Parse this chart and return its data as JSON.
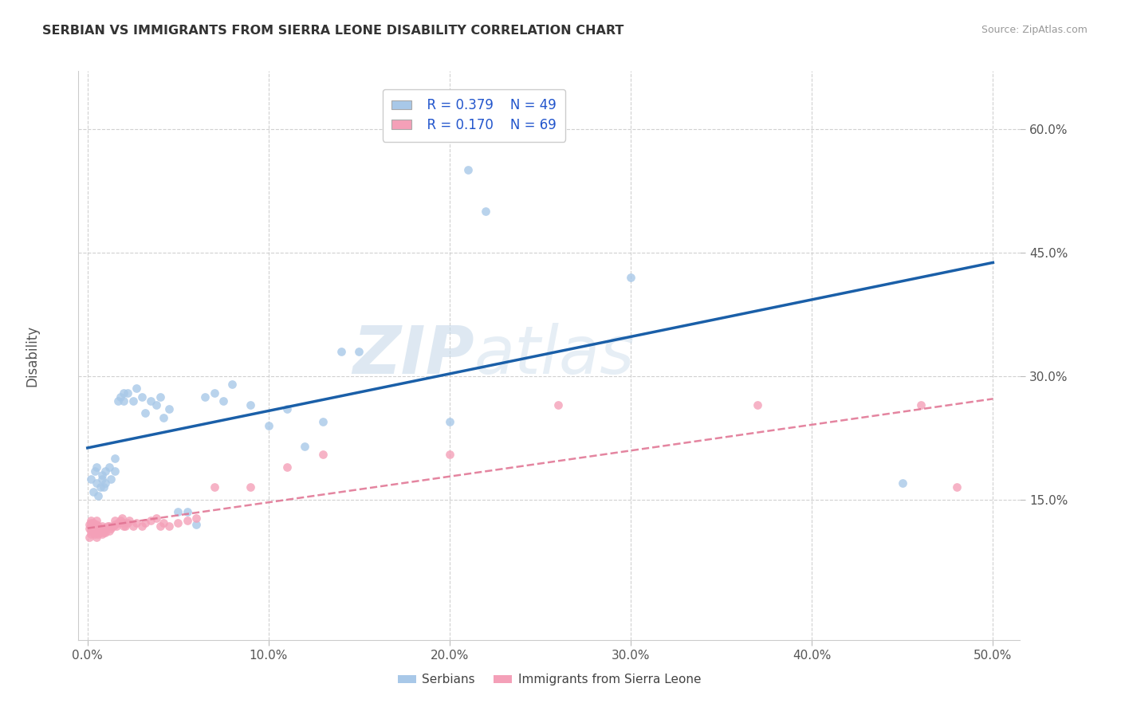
{
  "title": "SERBIAN VS IMMIGRANTS FROM SIERRA LEONE DISABILITY CORRELATION CHART",
  "source": "Source: ZipAtlas.com",
  "ylabel_label": "Disability",
  "xlim": [
    -0.005,
    0.515
  ],
  "ylim": [
    -0.02,
    0.67
  ],
  "xticks": [
    0.0,
    0.1,
    0.2,
    0.3,
    0.4,
    0.5
  ],
  "yticks": [
    0.15,
    0.3,
    0.45,
    0.6
  ],
  "ytick_labels": [
    "15.0%",
    "30.0%",
    "45.0%",
    "60.0%"
  ],
  "xtick_labels": [
    "0.0%",
    "10.0%",
    "20.0%",
    "30.0%",
    "40.0%",
    "50.0%"
  ],
  "grid_color": "#cccccc",
  "watermark_zip": "ZIP",
  "watermark_atlas": "atlas",
  "legend_R1": "R = 0.379",
  "legend_N1": "N = 49",
  "legend_R2": "R = 0.170",
  "legend_N2": "N = 69",
  "color_serbian": "#a8c8e8",
  "color_sierra": "#f4a0b8",
  "color_line_serbian": "#1a5fa8",
  "color_line_sierra": "#e07090",
  "scatter_size": 60,
  "serbian_x": [
    0.002,
    0.003,
    0.004,
    0.005,
    0.005,
    0.006,
    0.007,
    0.008,
    0.008,
    0.009,
    0.01,
    0.01,
    0.012,
    0.013,
    0.015,
    0.015,
    0.017,
    0.018,
    0.02,
    0.02,
    0.022,
    0.025,
    0.027,
    0.03,
    0.032,
    0.035,
    0.038,
    0.04,
    0.042,
    0.045,
    0.05,
    0.055,
    0.06,
    0.065,
    0.07,
    0.075,
    0.08,
    0.09,
    0.1,
    0.11,
    0.12,
    0.13,
    0.14,
    0.15,
    0.2,
    0.21,
    0.22,
    0.3,
    0.45
  ],
  "serbian_y": [
    0.175,
    0.16,
    0.185,
    0.17,
    0.19,
    0.155,
    0.165,
    0.175,
    0.18,
    0.165,
    0.17,
    0.185,
    0.19,
    0.175,
    0.185,
    0.2,
    0.27,
    0.275,
    0.27,
    0.28,
    0.28,
    0.27,
    0.285,
    0.275,
    0.255,
    0.27,
    0.265,
    0.275,
    0.25,
    0.26,
    0.135,
    0.135,
    0.12,
    0.275,
    0.28,
    0.27,
    0.29,
    0.265,
    0.24,
    0.26,
    0.215,
    0.245,
    0.33,
    0.33,
    0.245,
    0.55,
    0.5,
    0.42,
    0.17
  ],
  "sierra_x": [
    0.001,
    0.001,
    0.001,
    0.002,
    0.002,
    0.002,
    0.002,
    0.002,
    0.003,
    0.003,
    0.003,
    0.003,
    0.004,
    0.004,
    0.004,
    0.005,
    0.005,
    0.005,
    0.005,
    0.005,
    0.006,
    0.006,
    0.006,
    0.007,
    0.007,
    0.008,
    0.008,
    0.008,
    0.009,
    0.009,
    0.01,
    0.01,
    0.011,
    0.012,
    0.012,
    0.013,
    0.014,
    0.015,
    0.015,
    0.016,
    0.017,
    0.018,
    0.019,
    0.02,
    0.02,
    0.021,
    0.022,
    0.023,
    0.025,
    0.027,
    0.03,
    0.032,
    0.035,
    0.038,
    0.04,
    0.042,
    0.045,
    0.05,
    0.055,
    0.06,
    0.07,
    0.09,
    0.11,
    0.13,
    0.2,
    0.26,
    0.37,
    0.46,
    0.48
  ],
  "sierra_y": [
    0.105,
    0.115,
    0.12,
    0.108,
    0.112,
    0.118,
    0.122,
    0.125,
    0.11,
    0.115,
    0.118,
    0.122,
    0.108,
    0.112,
    0.118,
    0.105,
    0.11,
    0.115,
    0.12,
    0.125,
    0.108,
    0.112,
    0.118,
    0.11,
    0.115,
    0.108,
    0.112,
    0.118,
    0.11,
    0.115,
    0.11,
    0.115,
    0.118,
    0.112,
    0.118,
    0.115,
    0.118,
    0.12,
    0.125,
    0.118,
    0.122,
    0.125,
    0.128,
    0.118,
    0.122,
    0.118,
    0.122,
    0.125,
    0.118,
    0.122,
    0.118,
    0.122,
    0.125,
    0.128,
    0.118,
    0.122,
    0.118,
    0.122,
    0.125,
    0.128,
    0.165,
    0.165,
    0.19,
    0.205,
    0.205,
    0.265,
    0.265,
    0.265,
    0.165
  ]
}
